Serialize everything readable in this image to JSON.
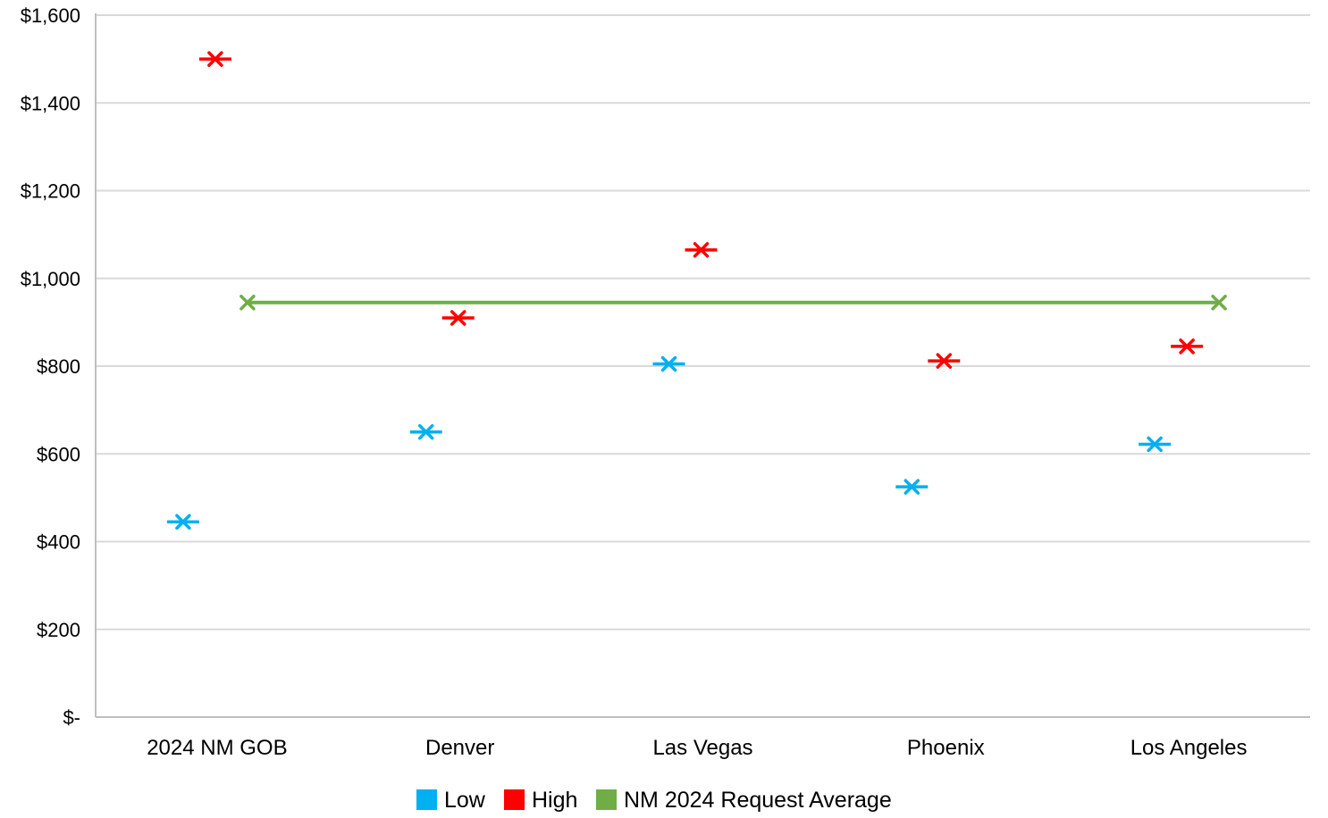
{
  "chart_data": {
    "type": "scatter",
    "categories": [
      "2024 NM GOB",
      "Denver",
      "Las Vegas",
      "Phoenix",
      "Los Angeles"
    ],
    "y_tick_labels": [
      "$-",
      "$200",
      "$400",
      "$600",
      "$800",
      "$1,000",
      "$1,200",
      "$1,400",
      "$1,600"
    ],
    "ylim": [
      0,
      1600
    ],
    "grid": true,
    "legend_position": "bottom",
    "series": [
      {
        "name": "Low",
        "color": "#00b0f0",
        "marker": "x-dash",
        "values": [
          445,
          650,
          805,
          525,
          622
        ]
      },
      {
        "name": "High",
        "color": "#ff0000",
        "marker": "x-dash",
        "values": [
          1500,
          910,
          1065,
          812,
          845
        ]
      },
      {
        "name": "NM 2024 Request Average",
        "color": "#70ad47",
        "marker": "x",
        "line": "horizontal",
        "values": [
          945,
          945
        ]
      }
    ]
  }
}
